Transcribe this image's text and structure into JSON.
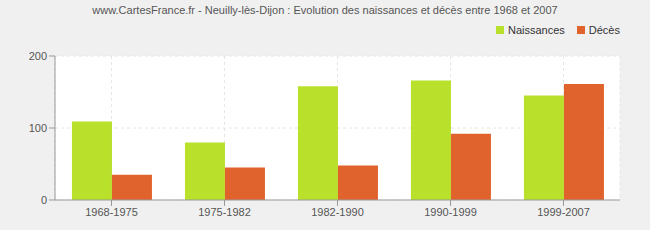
{
  "chart_data": {
    "type": "bar",
    "title": "www.CartesFrance.fr - Neuilly-lès-Dijon : Evolution des naissances et décès entre 1968 et 2007",
    "categories": [
      "1968-1975",
      "1975-1982",
      "1982-1990",
      "1990-1999",
      "1999-2007"
    ],
    "series": [
      {
        "name": "Naissances",
        "color": "#b9e02b",
        "values": [
          109,
          80,
          158,
          166,
          145
        ]
      },
      {
        "name": "Décès",
        "color": "#e0632e",
        "values": [
          35,
          45,
          48,
          92,
          161
        ]
      }
    ],
    "ylim": [
      0,
      200
    ],
    "yticks": [
      0,
      100,
      200
    ],
    "grid": true,
    "legend": "upper right"
  }
}
